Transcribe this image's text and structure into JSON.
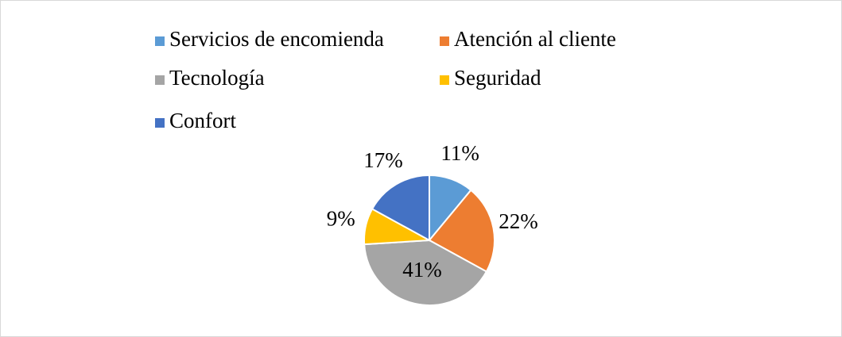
{
  "chart_data": {
    "type": "pie",
    "categories": [
      "Servicios de encomienda",
      "Atención al cliente",
      "Tecnología",
      "Seguridad",
      "Confort"
    ],
    "values": [
      11,
      22,
      41,
      9,
      17
    ],
    "value_labels": [
      "11%",
      "22%",
      "41%",
      "9%",
      "17%"
    ],
    "colors": [
      "#5b9bd5",
      "#ed7d31",
      "#a5a5a5",
      "#ffc000",
      "#4472c4"
    ],
    "legend": "top"
  }
}
